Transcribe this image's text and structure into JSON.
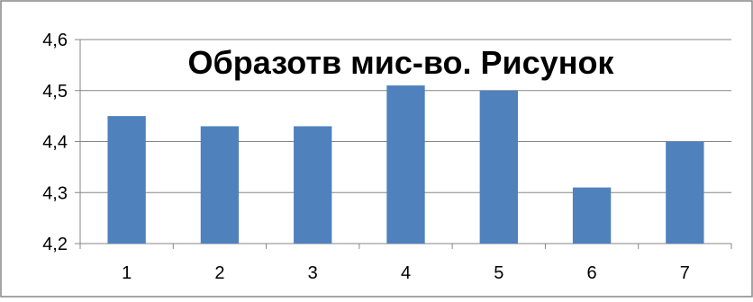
{
  "chart_data": {
    "type": "bar",
    "title": "Образотв мис-во. Рисунок",
    "categories": [
      "1",
      "2",
      "3",
      "4",
      "5",
      "6",
      "7"
    ],
    "series": [
      {
        "values": [
          4.45,
          4.43,
          4.43,
          4.51,
          4.5,
          4.31,
          4.4
        ]
      }
    ],
    "ylim": [
      4.2,
      4.6
    ],
    "yticks": [
      "4,2",
      "4,3",
      "4,4",
      "4,5",
      "4,6"
    ],
    "ytick_values": [
      4.2,
      4.3,
      4.4,
      4.5,
      4.6
    ],
    "grid": true,
    "legend": "none",
    "colors": {
      "bar": "#4F81BD",
      "grid": "#868686",
      "frame": "#868686"
    }
  }
}
